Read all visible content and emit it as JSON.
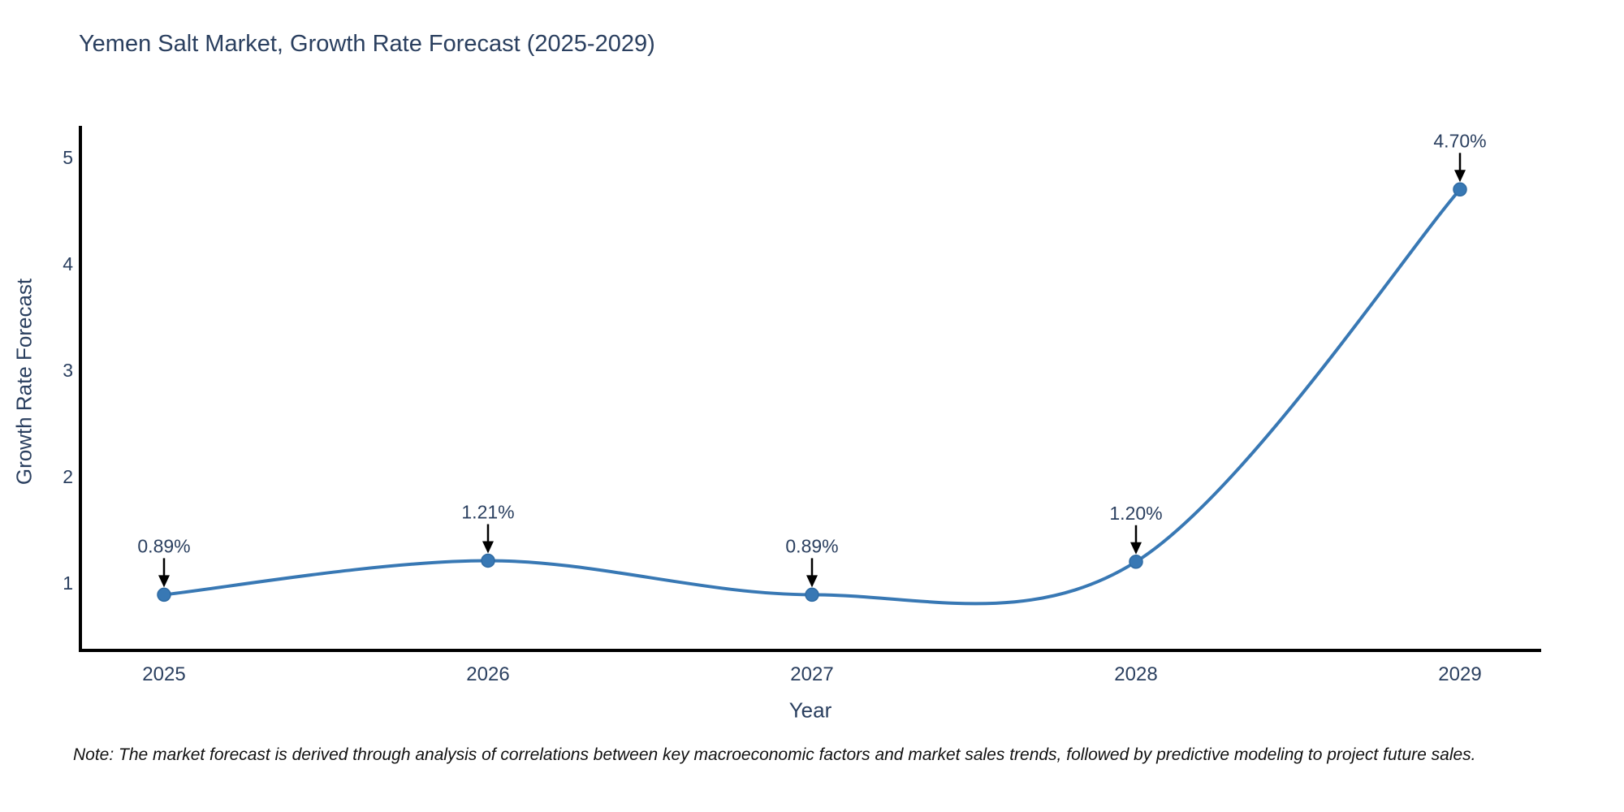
{
  "chart_data": {
    "type": "line",
    "title": "Yemen Salt Market, Growth Rate Forecast (2025-2029)",
    "xlabel": "Year",
    "ylabel": "Growth Rate Forecast",
    "x": [
      "2025",
      "2026",
      "2027",
      "2028",
      "2029"
    ],
    "series": [
      {
        "name": "Growth Rate Forecast",
        "values": [
          0.89,
          1.21,
          0.89,
          1.2,
          4.7
        ],
        "point_labels": [
          "0.89%",
          "1.21%",
          "0.89%",
          "1.20%",
          "4.70%"
        ]
      }
    ],
    "yticks": [
      1,
      2,
      3,
      4,
      5
    ],
    "ylim": [
      0.37,
      5.27
    ],
    "line_shape": "spline",
    "grid": false,
    "legend_position": "none",
    "colors": {
      "line": "#3878b4",
      "marker": "#3878b4",
      "marker_edge": "#2f6ba3",
      "axis": "#000000",
      "text": "#2a3f5f",
      "annotation_arrow": "#000000"
    }
  },
  "note": {
    "text": "Note: The market forecast is derived through analysis of correlations between key macroeconomic factors and market sales trends, followed by predictive modeling to project future sales."
  }
}
